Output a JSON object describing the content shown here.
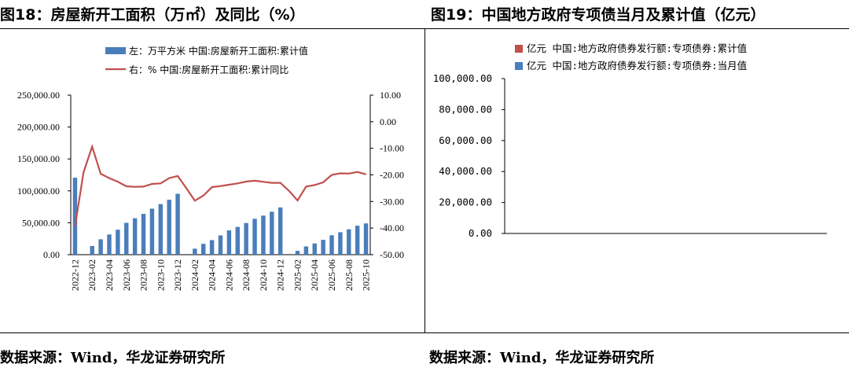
{
  "figures": {
    "left_title": "图18：房屋新开工面积（万㎡）及同比（%）",
    "right_title": "图19：中国地方政府专项债当月及累计值（亿元）",
    "left_source": "数据来源：Wind，华龙证券研究所",
    "right_source": "数据来源：Wind，华龙证券研究所"
  },
  "chart_data": [
    {
      "type": "bar+line",
      "title": "图18：房屋新开工面积（万㎡）及同比（%）",
      "categories": [
        "2022-12",
        "2023-01",
        "2023-02",
        "2023-03",
        "2023-04",
        "2023-05",
        "2023-06",
        "2023-07",
        "2023-08",
        "2023-09",
        "2023-10",
        "2023-11",
        "2023-12",
        "2024-01",
        "2024-02",
        "2024-03",
        "2024-04",
        "2024-05",
        "2024-06",
        "2024-07",
        "2024-08",
        "2024-09",
        "2024-10",
        "2024-11",
        "2024-12",
        "2025-01",
        "2025-02",
        "2025-03",
        "2025-04",
        "2025-05",
        "2025-06",
        "2025-07",
        "2025-08",
        "2025-09",
        "2025-10"
      ],
      "x_tick_labels": [
        "2022-12",
        "2023-02",
        "2023-04",
        "2023-06",
        "2023-08",
        "2023-10",
        "2023-12",
        "2024-02",
        "2024-04",
        "2024-06",
        "2024-08",
        "2024-10",
        "2024-12",
        "2025-02",
        "2025-04",
        "2025-06",
        "2025-08",
        "2025-10"
      ],
      "series": [
        {
          "name": "左：万平方米 中国:房屋新开工面积:累计值",
          "axis": "left",
          "type": "bar",
          "color": "#4a7ebb",
          "values": [
            120587,
            null,
            13600,
            24100,
            31600,
            39100,
            49900,
            57100,
            63900,
            72100,
            79200,
            86000,
            95400,
            null,
            9400,
            17000,
            22800,
            30200,
            38000,
            43500,
            49600,
            56200,
            61200,
            67300,
            74000,
            null,
            6000,
            12900,
            17600,
            23200,
            30400,
            35200,
            39800,
            45400,
            49000
          ]
        },
        {
          "name": "右：% 中国:房屋新开工面积:累计同比",
          "axis": "right",
          "type": "line",
          "color": "#c0504d",
          "values": [
            -39.4,
            -19,
            -9.4,
            -19.6,
            -21.2,
            -22.6,
            -24.3,
            -24.5,
            -24.4,
            -23.4,
            -23.2,
            -21.2,
            -20.4,
            -25,
            -29.7,
            -27.8,
            -24.6,
            -24.2,
            -23.7,
            -23.2,
            -22.5,
            -22.2,
            -22.6,
            -23,
            -23,
            -26,
            -29.6,
            -24.4,
            -23.8,
            -22.8,
            -20.0,
            -19.4,
            -19.5,
            -18.9,
            -19.8
          ]
        }
      ],
      "y_left": {
        "min": 0,
        "max": 250000,
        "ticks": [
          "250,000.00",
          "200,000.00",
          "150,000.00",
          "100,000.00",
          "50,000.00",
          "0.00"
        ]
      },
      "y_right": {
        "min": -50,
        "max": 10,
        "ticks": [
          "10.00",
          "0.00",
          "-10.00",
          "-20.00",
          "-30.00",
          "-40.00",
          "-50.00"
        ]
      },
      "grid": false,
      "legend": "top-center"
    },
    {
      "type": "area",
      "title": "图19：中国地方政府专项债当月及累计值（亿元）",
      "x_tick_labels": [],
      "series": [
        {
          "name": "亿元 中国:地方政府债券发行额:专项债券:累计值",
          "color": "#c0504d",
          "values": []
        },
        {
          "name": "亿元 中国:地方政府债券发行额:专项债券:当月值",
          "color": "#4a7ebb",
          "values": []
        }
      ],
      "y": {
        "min": 0,
        "max": 100000,
        "ticks": [
          "100,000.00",
          "80,000.00",
          "60,000.00",
          "40,000.00",
          "20,000.00",
          "0.00"
        ]
      },
      "grid": false,
      "legend": "top-center"
    }
  ]
}
